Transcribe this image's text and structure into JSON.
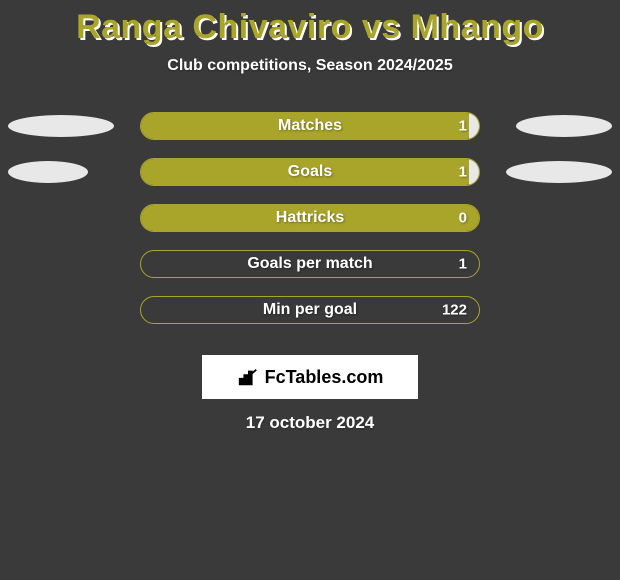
{
  "background_color": "#3a3a3a",
  "title": {
    "text": "Ranga Chivaviro vs Mhango",
    "color": "#a9a52b",
    "shadow_color": "#ffffff",
    "fontsize": 34
  },
  "subtitle": {
    "text": "Club competitions, Season 2024/2025",
    "color": "#ffffff",
    "fontsize": 16
  },
  "stats": {
    "bar_track_width": 340,
    "bar_track_height": 28,
    "bar_border_color": "#a9a52b",
    "label_color": "#ffffff",
    "value_color": "#ffffff",
    "left_fill_color": "#a9a52b",
    "right_fill_color": "#e8e8e8",
    "ellipse_left_color": "#e8e8e8",
    "ellipse_right_color": "#e8e8e8",
    "rows": [
      {
        "label": "Matches",
        "left_value": "",
        "right_value": "1",
        "left_pct": 97,
        "right_pct": 3,
        "ellipse_left_w": 106,
        "ellipse_left_h": 22,
        "ellipse_right_w": 96,
        "ellipse_right_h": 22
      },
      {
        "label": "Goals",
        "left_value": "",
        "right_value": "1",
        "left_pct": 97,
        "right_pct": 3,
        "ellipse_left_w": 80,
        "ellipse_left_h": 22,
        "ellipse_right_w": 106,
        "ellipse_right_h": 22
      },
      {
        "label": "Hattricks",
        "left_value": "",
        "right_value": "0",
        "left_pct": 100,
        "right_pct": 0,
        "ellipse_left_w": 0,
        "ellipse_left_h": 0,
        "ellipse_right_w": 0,
        "ellipse_right_h": 0
      },
      {
        "label": "Goals per match",
        "left_value": "",
        "right_value": "1",
        "left_pct": 0,
        "right_pct": 0,
        "border_only": true,
        "ellipse_left_w": 0,
        "ellipse_left_h": 0,
        "ellipse_right_w": 0,
        "ellipse_right_h": 0
      },
      {
        "label": "Min per goal",
        "left_value": "",
        "right_value": "122",
        "left_pct": 0,
        "right_pct": 0,
        "border_only": true,
        "ellipse_left_w": 0,
        "ellipse_left_h": 0,
        "ellipse_right_w": 0,
        "ellipse_right_h": 0
      }
    ]
  },
  "logo": {
    "bg_color": "#ffffff",
    "text": "FcTables.com",
    "icon_color": "#000000"
  },
  "date": {
    "text": "17 october 2024"
  }
}
